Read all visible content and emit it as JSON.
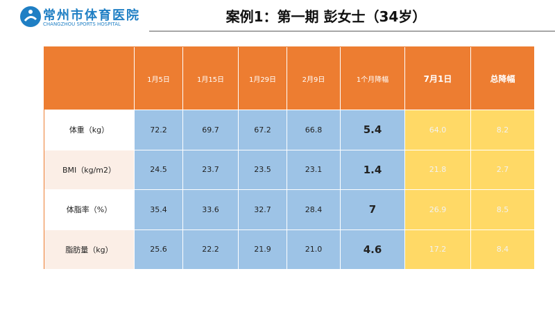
{
  "header": {
    "logo_name": "常州市体育医院",
    "logo_subtitle": "CHANGZHOU SPORTS HOSPITAL",
    "title": "案例1：第一期 彭女士（34岁）"
  },
  "table": {
    "columns": [
      "1月5日",
      "1月15日",
      "1月29日",
      "2月9日",
      "1个月降幅",
      "7月1日",
      "总降幅"
    ],
    "rows": [
      {
        "label": "体重（kg）",
        "cells": [
          "72.2",
          "69.7",
          "67.2",
          "66.8",
          "5.4",
          "64.0",
          "8.2"
        ]
      },
      {
        "label": "BMI（kg/m2）",
        "cells": [
          "24.5",
          "23.7",
          "23.5",
          "23.1",
          "1.4",
          "21.8",
          "2.7"
        ]
      },
      {
        "label": "体脂率（%）",
        "cells": [
          "35.4",
          "33.6",
          "32.7",
          "28.4",
          "7",
          "26.9",
          "8.5"
        ]
      },
      {
        "label": "脂肪量（kg）",
        "cells": [
          "25.6",
          "22.2",
          "21.9",
          "21.0",
          "4.6",
          "17.2",
          "8.4"
        ]
      }
    ]
  }
}
